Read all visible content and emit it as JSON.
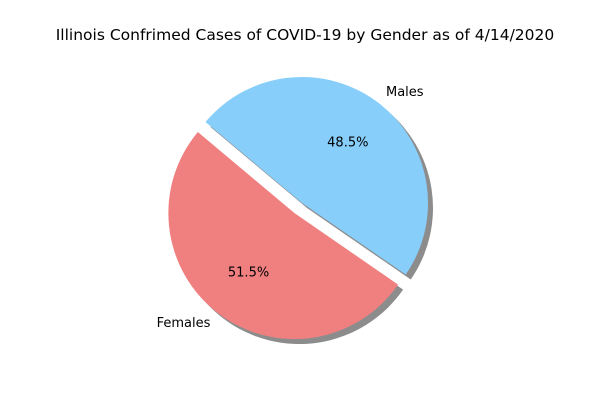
{
  "chart_data": {
    "type": "pie",
    "title": "Illinois Confrimed Cases of COVID-19 by Gender as of 4/14/2020",
    "slices": [
      {
        "label": "Females",
        "value": 51.5,
        "pct_label": "51.5%",
        "color": "#f08080"
      },
      {
        "label": "Males",
        "value": 48.5,
        "pct_label": "48.5%",
        "color": "#87cefa"
      }
    ],
    "start_angle_deg": 140,
    "explode": [
      0.1,
      0
    ],
    "shadow": true
  }
}
